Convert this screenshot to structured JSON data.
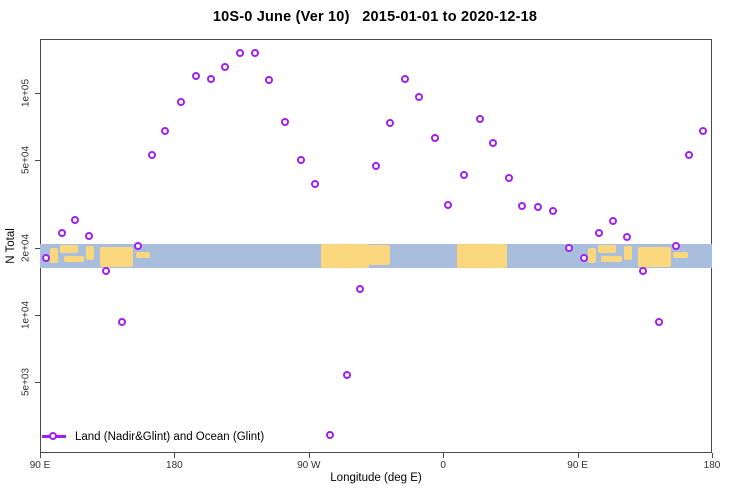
{
  "title": "10S-0 June (Ver 10)   2015-01-01 to 2020-12-18",
  "colors": {
    "point": "#a020f0",
    "ocean": "#a9bedc",
    "land": "#fbd77e",
    "axis": "#4a4a4a",
    "tick_text": "#303030"
  },
  "chart_data": {
    "type": "scatter",
    "title": "10S-0 June (Ver 10)   2015-01-01 to 2020-12-18",
    "xlabel": "Longitude (deg E)",
    "ylabel": "N Total",
    "grid": false,
    "legend_position": "bottom-left",
    "x_axis": {
      "note": "longitude axis wraps eastward from 90E through 180, 90W, 0 back to 180",
      "range_deg": [
        90,
        540
      ],
      "ticks": [
        {
          "deg": 90,
          "label": "90 E"
        },
        {
          "deg": 180,
          "label": "180"
        },
        {
          "deg": 270,
          "label": "90 W"
        },
        {
          "deg": 360,
          "label": "0"
        },
        {
          "deg": 450,
          "label": "90 E"
        },
        {
          "deg": 540,
          "label": "180"
        }
      ]
    },
    "y_axis": {
      "scale": "log",
      "range": [
        2400,
        175000
      ],
      "ticks": [
        {
          "value": 100000,
          "label": "1e+05"
        },
        {
          "value": 50000,
          "label": "5e+04"
        },
        {
          "value": 20000,
          "label": "2e+04"
        },
        {
          "value": 10000,
          "label": "1e+04"
        },
        {
          "value": 5000,
          "label": "5e+03"
        }
      ]
    },
    "legend": {
      "label": "Land (Nadir&Glint) and Ocean (Glint)"
    },
    "series": [
      {
        "name": "Land (Nadir&Glint) and Ocean (Glint)",
        "marker": "open-circle",
        "points_deg_value": [
          [
            224.0,
            149800
          ],
          [
            234.1,
            149800
          ],
          [
            214.0,
            129600
          ],
          [
            195.2,
            118000
          ],
          [
            204.6,
            114400
          ],
          [
            243.5,
            113200
          ],
          [
            184.5,
            90200
          ],
          [
            174.4,
            66800
          ],
          [
            165.1,
            52100
          ],
          [
            334.6,
            114400
          ],
          [
            344.0,
            95000
          ],
          [
            254.2,
            73300
          ],
          [
            324.5,
            72500
          ],
          [
            384.9,
            75600
          ],
          [
            354.7,
            62100
          ],
          [
            393.6,
            59000
          ],
          [
            264.9,
            49400
          ],
          [
            315.2,
            46500
          ],
          [
            374.1,
            42300
          ],
          [
            404.3,
            41000
          ],
          [
            534.3,
            66800
          ],
          [
            524.9,
            52100
          ],
          [
            114.1,
            26600
          ],
          [
            105.4,
            23400
          ],
          [
            123.5,
            22500
          ],
          [
            155.7,
            20300
          ],
          [
            94.7,
            17900
          ],
          [
            134.9,
            15700
          ],
          [
            274.3,
            38600
          ],
          [
            363.4,
            31000
          ],
          [
            304.4,
            13100
          ],
          [
            413.0,
            30700
          ],
          [
            423.7,
            30400
          ],
          [
            433.8,
            29200
          ],
          [
            474.0,
            26300
          ],
          [
            464.6,
            23200
          ],
          [
            483.4,
            22300
          ],
          [
            444.5,
            19900
          ],
          [
            454.6,
            17900
          ],
          [
            516.2,
            20300
          ],
          [
            494.1,
            15700
          ],
          [
            145.0,
            9230
          ],
          [
            295.7,
            5330
          ],
          [
            284.3,
            2860
          ],
          [
            504.8,
            9230
          ]
        ]
      }
    ],
    "map_band": {
      "description": "ocean strip of latitude band 10S-0 with land shown",
      "value_top": 21000,
      "value_bottom": 16300,
      "land_patches_deg_frac": [
        [
          96.7,
          102.1,
          0.17,
          0.79
        ],
        [
          103.4,
          115.5,
          0.04,
          0.38
        ],
        [
          106.0,
          119.5,
          0.5,
          0.75
        ],
        [
          120.8,
          126.2,
          0.08,
          0.67
        ],
        [
          130.2,
          152.3,
          0.12,
          0.96
        ],
        [
          154.3,
          163.7,
          0.35,
          0.6
        ],
        [
          278.3,
          310.0,
          0.02,
          1.0
        ],
        [
          310.0,
          324.6,
          0.05,
          0.88
        ],
        [
          369.5,
          402.5,
          0.0,
          1.0
        ],
        [
          456.7,
          462.1,
          0.17,
          0.79
        ],
        [
          463.4,
          475.5,
          0.04,
          0.38
        ],
        [
          466.0,
          479.5,
          0.5,
          0.75
        ],
        [
          480.8,
          486.2,
          0.08,
          0.67
        ],
        [
          490.2,
          512.3,
          0.12,
          0.96
        ],
        [
          514.0,
          523.7,
          0.35,
          0.6
        ]
      ]
    }
  }
}
